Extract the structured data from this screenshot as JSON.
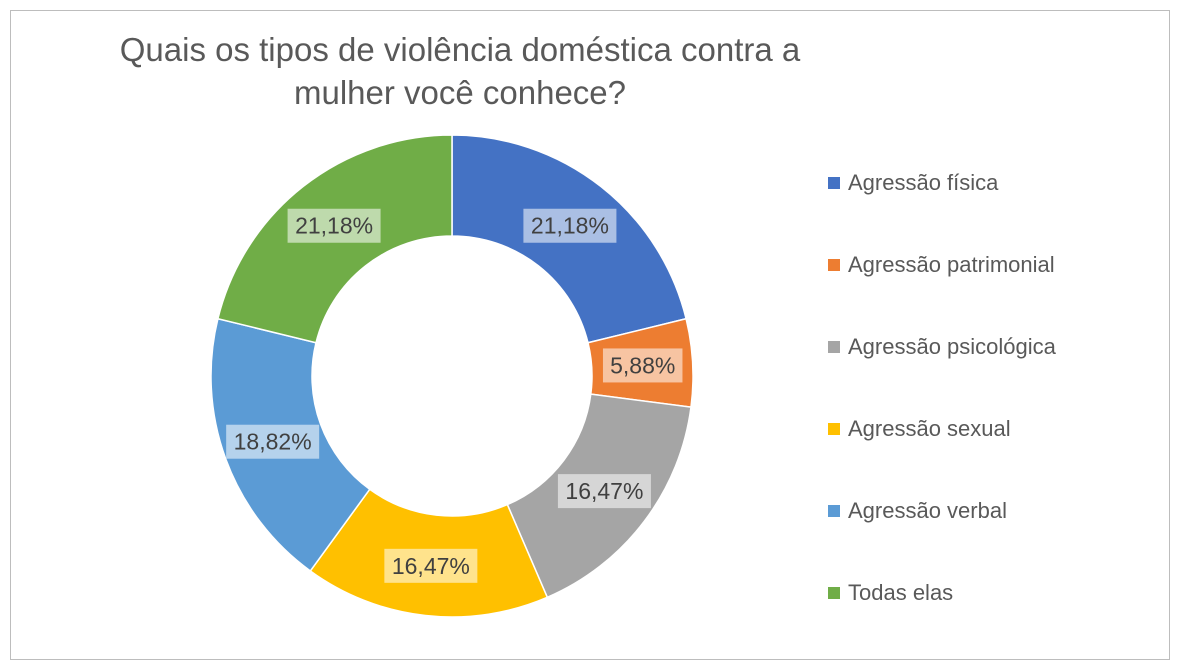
{
  "chart_data": {
    "type": "pie",
    "variant": "doughnut",
    "title": "Quais os tipos de violência doméstica contra a mulher você conhece?",
    "legend_position": "right",
    "start_angle_deg": 0,
    "direction": "clockwise",
    "series": [
      {
        "name": "Agressão física",
        "value": 21.18,
        "label": "21,18%",
        "color": "#4472C4"
      },
      {
        "name": "Agressão patrimonial",
        "value": 5.88,
        "label": "5,88%",
        "color": "#ED7D31"
      },
      {
        "name": "Agressão psicológica",
        "value": 16.47,
        "label": "16,47%",
        "color": "#A5A5A5"
      },
      {
        "name": "Agressão sexual",
        "value": 16.47,
        "label": "16,47%",
        "color": "#FFC000"
      },
      {
        "name": "Agressão verbal",
        "value": 18.82,
        "label": "18,82%",
        "color": "#5B9BD5"
      },
      {
        "name": "Todas elas",
        "value": 21.18,
        "label": "21,18%",
        "color": "#70AD47"
      }
    ]
  }
}
